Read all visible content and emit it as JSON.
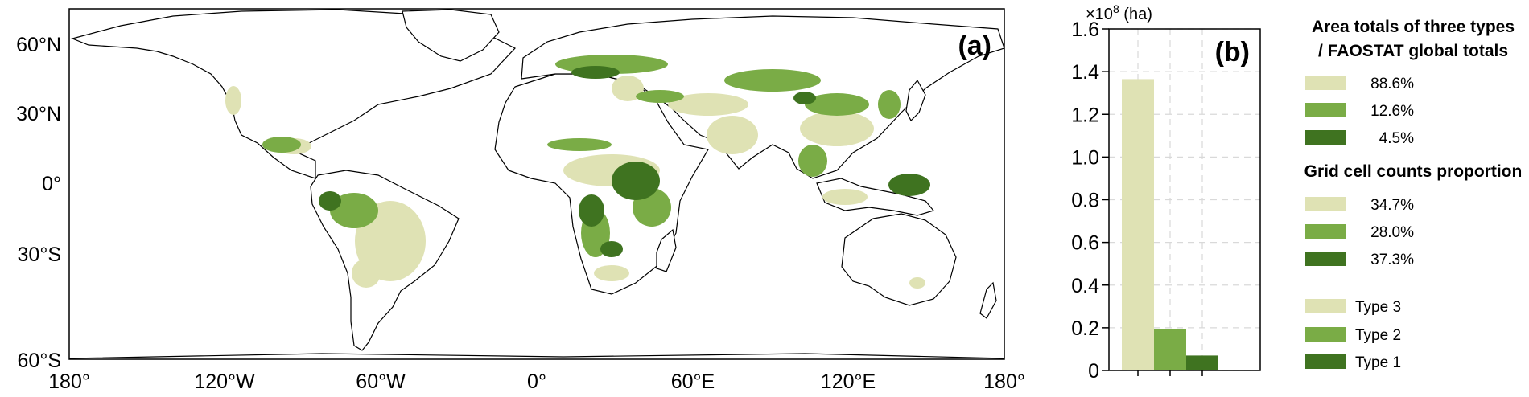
{
  "map": {
    "panel_label": "(a)",
    "lon_ticks": [
      "180°",
      "120°W",
      "60°W",
      "0°",
      "60°E",
      "120°E",
      "180°"
    ],
    "lat_ticks": [
      "60°N",
      "30°N",
      "0°",
      "30°S",
      "60°S"
    ],
    "colors": {
      "type3": "#dfe2b4",
      "type2": "#7aac46",
      "type1": "#3f7320",
      "land_outline": "#000000"
    }
  },
  "chart_data": {
    "type": "bar",
    "panel_label": "(b)",
    "categories": [
      "Type 3",
      "Type 2",
      "Type 1"
    ],
    "values": [
      1.365,
      0.192,
      0.07
    ],
    "colors": [
      "#dfe2b4",
      "#7aac46",
      "#3f7320"
    ],
    "ylim": [
      0,
      1.6
    ],
    "yticks": [
      "0",
      "0.2",
      "0.4",
      "0.6",
      "0.8",
      "1.0",
      "1.2",
      "1.4",
      "1.6"
    ],
    "ytick_values": [
      0,
      0.2,
      0.4,
      0.6,
      0.8,
      1.0,
      1.2,
      1.4,
      1.6
    ],
    "scale_prefix": "×10",
    "scale_exp": "8",
    "scale_unit": " (ha)",
    "grid": true
  },
  "legend": {
    "area_title_1": "Area totals of three types",
    "area_title_2": "/ FAOSTAT global totals",
    "area_items": [
      "88.6%",
      "12.6%",
      "4.5%"
    ],
    "grid_title": "Grid cell counts proportion",
    "grid_items": [
      "34.7%",
      "28.0%",
      "37.3%"
    ],
    "type_items": [
      "Type 3",
      "Type 2",
      "Type 1"
    ],
    "placement": "right"
  }
}
